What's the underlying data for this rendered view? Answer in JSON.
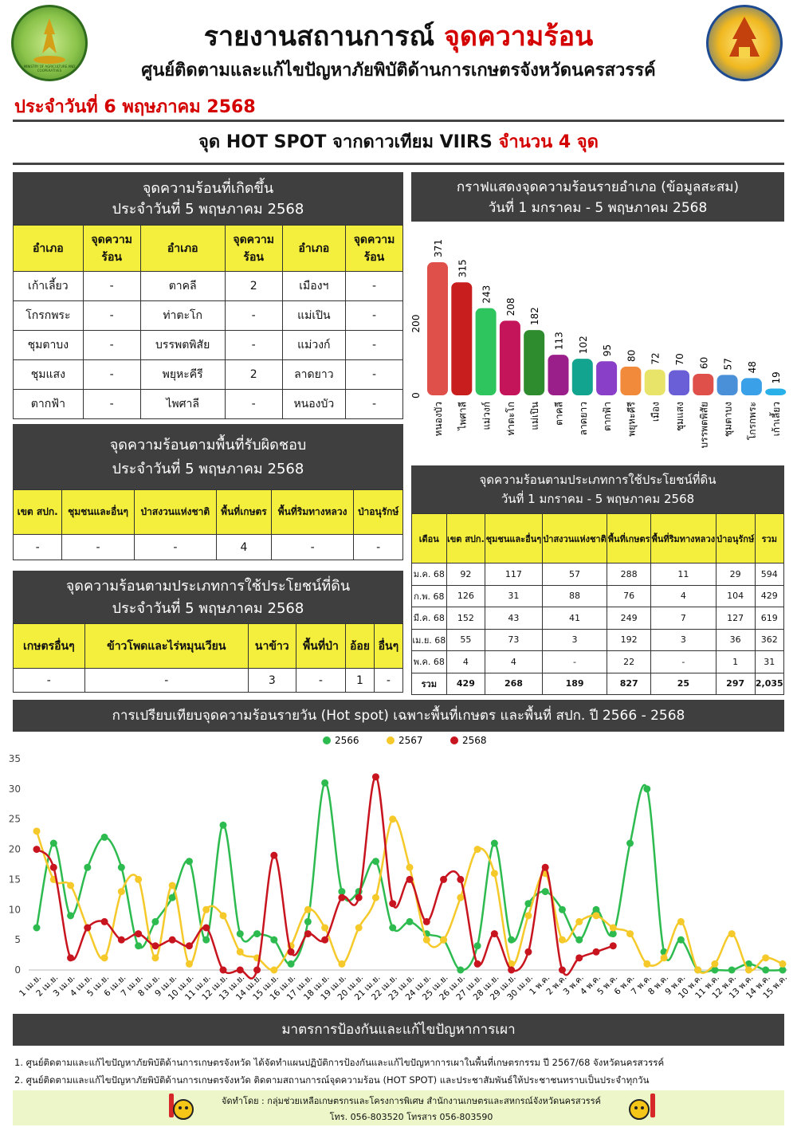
{
  "header": {
    "title_prefix": "รายงานสถานการณ์",
    "title_highlight": "จุดความร้อน",
    "subtitle": "ศูนย์ติดตามและแก้ไขปัญหาภัยพิบัติด้านการเกษตรจังหวัดนครสวรรค์",
    "date": "ประจำวันที่ 6 พฤษภาคม 2568",
    "left_logo_text": "MINISTRY OF AGRICULTURE AND COOPERATIVES"
  },
  "hotspot_banner": {
    "prefix": "จุด HOT SPOT จากดาวเทียม VIIRS",
    "highlight": "จำนวน 4 จุด"
  },
  "daily_table": {
    "title1": "จุดความร้อนที่เกิดขึ้น",
    "title2": "ประจำวันที่ 5 พฤษภาคม 2568",
    "col_district": "อำเภอ",
    "col_count": "จุดความร้อน",
    "rows": [
      [
        "เก้าเลี้ยว",
        "-",
        "ตาคลี",
        "2",
        "เมืองฯ",
        "-"
      ],
      [
        "โกรกพระ",
        "-",
        "ท่าตะโก",
        "-",
        "แม่เปิน",
        "-"
      ],
      [
        "ชุมตาบง",
        "-",
        "บรรพตพิสัย",
        "-",
        "แม่วงก์",
        "-"
      ],
      [
        "ชุมแสง",
        "-",
        "พยุหะคีรี",
        "2",
        "ลาดยาว",
        "-"
      ],
      [
        "ตากฟ้า",
        "-",
        "ไพศาลี",
        "-",
        "หนองบัว",
        "-"
      ]
    ]
  },
  "area_table": {
    "title1": "จุดความร้อนตามพื้นที่รับผิดชอบ",
    "title2": "ประจำวันที่ 5 พฤษภาคม 2568",
    "headers": [
      "เขต สปก.",
      "ชุมชนและอื่นๆ",
      "ป่าสงวนแห่งชาติ",
      "พื้นที่เกษตร",
      "พื้นที่ริมทางหลวง",
      "ป่าอนุรักษ์"
    ],
    "values": [
      "-",
      "-",
      "-",
      "4",
      "-",
      "-"
    ]
  },
  "landuse_table": {
    "title1": "จุดความร้อนตามประเภทการใช้ประโยชน์ที่ดิน",
    "title2": "ประจำวันที่ 5 พฤษภาคม 2568",
    "headers": [
      "เกษตรอื่นๆ",
      "ข้าวโพดและไร่หมุนเวียน",
      "นาข้าว",
      "พื้นที่ป่า",
      "อ้อย",
      "อื่นๆ"
    ],
    "values": [
      "-",
      "-",
      "3",
      "-",
      "1",
      "-"
    ]
  },
  "bar_panel": {
    "title1": "กราฟแสดงจุดความร้อนรายอำเภอ (ข้อมูลสะสม)",
    "title2": "วันที่ 1 มกราคม - 5 พฤษภาคม 2568"
  },
  "monthly_table": {
    "title1": "จุดความร้อนตามประเภทการใช้ประโยชน์ที่ดิน",
    "title2": "วันที่ 1 มกราคม - 5 พฤษภาคม 2568",
    "headers": [
      "เดือน",
      "เขต สปก.",
      "ชุมชนและอื่นๆ",
      "ป่าสงวนแห่งชาติ",
      "พื้นที่เกษตร",
      "พื้นที่ริมทางหลวง",
      "ป่าอนุรักษ์",
      "รวม"
    ],
    "rows": [
      [
        "ม.ค. 68",
        "92",
        "117",
        "57",
        "288",
        "11",
        "29",
        "594"
      ],
      [
        "ก.พ. 68",
        "126",
        "31",
        "88",
        "76",
        "4",
        "104",
        "429"
      ],
      [
        "มี.ค. 68",
        "152",
        "43",
        "41",
        "249",
        "7",
        "127",
        "619"
      ],
      [
        "เม.ย. 68",
        "55",
        "73",
        "3",
        "192",
        "3",
        "36",
        "362"
      ],
      [
        "พ.ค. 68",
        "4",
        "4",
        "-",
        "22",
        "-",
        "1",
        "31"
      ],
      [
        "รวม",
        "429",
        "268",
        "189",
        "827",
        "25",
        "297",
        "2,035"
      ]
    ]
  },
  "line_panel": {
    "title": "การเปรียบเทียบจุดความร้อนรายวัน (Hot spot)  เฉพาะพื้นที่เกษตร และพื้นที่ สปก. ปี 2566 - 2568"
  },
  "measures": {
    "title": "มาตรการป้องกันและแก้ไขปัญหาการเผา",
    "items": [
      "1. ศูนย์ติดตามและแก้ไขปัญหาภัยพิบัติด้านการเกษตรจังหวัด ได้จัดทำแผนปฏิบัติการป้องกันและแก้ไขปัญหาการเผาในพื้นที่เกษตรกรรม ปี 2567/68 จังหวัดนครสวรรค์",
      "2. ศูนย์ติดตามและแก้ไขปัญหาภัยพิบัติด้านการเกษตรจังหวัด ติดตามสถานการณ์จุดความร้อน (HOT SPOT) และประชาสัมพันธ์ให้ประชาชนทราบเป็นประจำทุกวัน"
    ]
  },
  "footer": {
    "line1": "จัดทำโดย : กลุ่มช่วยเหลือเกษตรกรและโครงการพิเศษ สำนักงานเกษตรและสหกรณ์จังหวัดนครสวรรค์",
    "line2": "โทร. 056-803520 โทรสาร 056-803590"
  },
  "chart_data": [
    {
      "type": "bar",
      "title": "กราฟแสดงจุดความร้อนรายอำเภอ (ข้อมูลสะสม)",
      "subtitle": "วันที่ 1 มกราคม - 5 พฤษภาคม 2568",
      "categories": [
        "หนองบัว",
        "ไพศาลี",
        "แม่วงก์",
        "ท่าตะโก",
        "แม่เปิน",
        "ตาคลี",
        "ลาดยาว",
        "ตากฟ้า",
        "พยุหะคีรี",
        "เมือง",
        "ชุมแสง",
        "บรรพตพิสัย",
        "ชุมตาบง",
        "โกรกพระ",
        "เก้าเลี้ยว"
      ],
      "values": [
        371,
        315,
        243,
        208,
        182,
        113,
        102,
        95,
        80,
        72,
        70,
        60,
        57,
        48,
        19
      ],
      "colors": [
        "#e0504a",
        "#c81e1e",
        "#2fc55e",
        "#c4155a",
        "#2e8b2e",
        "#9b1f8a",
        "#12a48e",
        "#8a3fc8",
        "#f28a3c",
        "#e8e46a",
        "#6a5fd6",
        "#e0504a",
        "#4a90d9",
        "#3aa0e8",
        "#2ab0e8"
      ],
      "yticks": [
        0,
        200
      ],
      "ylim": [
        0,
        400
      ]
    },
    {
      "type": "line",
      "title": "การเปรียบเทียบจุดความร้อนรายวัน (Hot spot)  เฉพาะพื้นที่เกษตร และพื้นที่ สปก. ปี 2566 - 2568",
      "categories": [
        "1 เม.ย.",
        "2 เม.ย.",
        "3 เม.ย.",
        "4 เม.ย.",
        "5 เม.ย.",
        "6 เม.ย.",
        "7 เม.ย.",
        "8 เม.ย.",
        "9 เม.ย.",
        "10 เม.ย.",
        "11 เม.ย.",
        "12 เม.ย.",
        "13 เม.ย.",
        "14 เม.ย.",
        "15 เม.ย.",
        "16 เม.ย.",
        "17 เม.ย.",
        "18 เม.ย.",
        "19 เม.ย.",
        "20 เม.ย.",
        "21 เม.ย.",
        "22 เม.ย.",
        "23 เม.ย.",
        "24 เม.ย.",
        "25 เม.ย.",
        "26 เม.ย.",
        "27 เม.ย.",
        "28 เม.ย.",
        "29 เม.ย.",
        "30 เม.ย.",
        "1 พ.ค.",
        "2 พ.ค.",
        "3 พ.ค.",
        "4 พ.ค.",
        "5 พ.ค.",
        "6 พ.ค.",
        "7 พ.ค.",
        "8 พ.ค.",
        "9 พ.ค.",
        "10 พ.ค.",
        "11 พ.ค.",
        "12 พ.ค.",
        "13 พ.ค.",
        "14 พ.ค.",
        "15 พ.ค."
      ],
      "tick_labels": [
        "1 เม.ย.",
        "2 เม.ย.",
        "3 เม.ย.",
        "4 เม.ย.",
        "5 เม.ย.",
        "6 เม.ย.",
        "7 เม.ย.",
        "8 เม.ย.",
        "9 เม.ย.",
        "10 เม.ย.",
        "11 เม.ย.",
        "12 เม.ย.",
        "13 เม.ย.",
        "14 เม.ย.",
        "15 เม.ย.",
        "16 เม.ย.",
        "17 เม.ย.",
        "18 เม.ย.",
        "19 เม.ย.",
        "20 เม.ย.",
        "21 เม.ย.",
        "22 เม.ย.",
        "23 เม.ย.",
        "24 เม.ย.",
        "25 เม.ย.",
        "26 เม.ย.",
        "27 เม.ย.",
        "28 เม.ย.",
        "29 เม.ย.",
        "30 เม.ย.",
        "1 พ.ค.",
        "2 พ.ค.",
        "3 พ.ค.",
        "4 พ.ค.",
        "5 พ.ค.",
        "6 พ.ค.",
        "7 พ.ค.",
        "8 พ.ค.",
        "9 พ.ค.",
        "10 พ.ค.",
        "11 พ.ค.",
        "12 พ.ค.",
        "13 พ.ค.",
        "14 พ.ค.",
        "15 พ.ค."
      ],
      "ylim": [
        0,
        35
      ],
      "yticks": [
        0,
        5,
        10,
        15,
        20,
        25,
        30,
        35
      ],
      "series": [
        {
          "name": "2566",
          "color": "#2dbb4f",
          "values": [
            7,
            21,
            9,
            17,
            22,
            17,
            4,
            8,
            12,
            18,
            5,
            24,
            6,
            6,
            5,
            1,
            8,
            31,
            13,
            13,
            18,
            7,
            8,
            6,
            5,
            0,
            4,
            21,
            5,
            11,
            13,
            10,
            5,
            10,
            6,
            21,
            30,
            3,
            5,
            0,
            0,
            0,
            1,
            0,
            0
          ]
        },
        {
          "name": "2567",
          "color": "#f5c92a",
          "values": [
            23,
            15,
            14,
            7,
            2,
            13,
            15,
            2,
            14,
            1,
            10,
            9,
            3,
            2,
            0,
            4,
            10,
            7,
            1,
            7,
            12,
            25,
            17,
            5,
            5,
            12,
            20,
            16,
            1,
            9,
            16,
            5,
            8,
            9,
            7,
            6,
            1,
            2,
            8,
            0,
            1,
            6,
            0,
            2,
            1
          ]
        },
        {
          "name": "2568",
          "color": "#c8141e",
          "values": [
            20,
            17,
            2,
            7,
            8,
            5,
            6,
            4,
            5,
            4,
            7,
            0,
            0,
            0,
            19,
            3,
            6,
            5,
            12,
            12,
            32,
            11,
            15,
            8,
            15,
            15,
            1,
            6,
            0,
            3,
            17,
            0,
            2,
            3,
            4,
            null,
            null,
            null,
            null,
            null,
            null,
            null,
            null,
            null,
            null
          ]
        }
      ]
    }
  ]
}
